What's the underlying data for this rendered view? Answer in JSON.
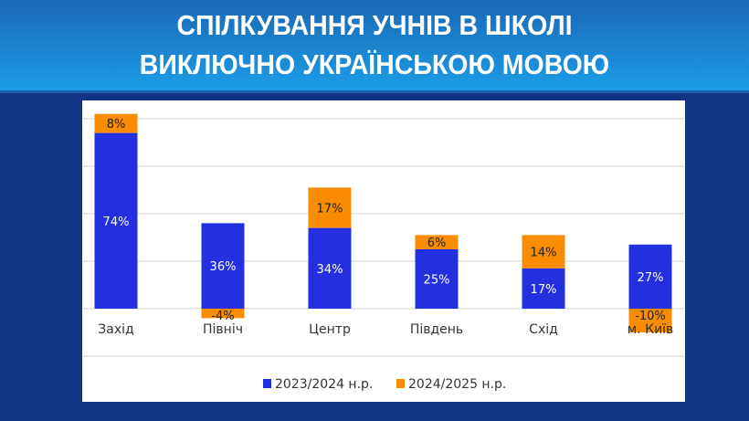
{
  "header": {
    "title_line1": "СПІЛКУВАННЯ УЧНІВ В ШКОЛІ",
    "title_line2": "ВИКЛЮЧНО УКРАЇНСЬКОЮ МОВОЮ"
  },
  "chart_data": {
    "type": "bar",
    "stacked": true,
    "categories": [
      "Захід",
      "Північ",
      "Центр",
      "Південь",
      "Схід",
      "м. Київ"
    ],
    "series": [
      {
        "name": "2023/2024 н.р.",
        "color": "#2230e0",
        "values": [
          74,
          36,
          34,
          25,
          17,
          27
        ],
        "labels": [
          "74%",
          "36%",
          "34%",
          "25%",
          "17%",
          "27%"
        ]
      },
      {
        "name": "2024/2025 н.р.",
        "color": "#f98c00",
        "values": [
          8,
          -4,
          17,
          6,
          14,
          -10
        ],
        "labels": [
          "8%",
          "-4%",
          "17%",
          "6%",
          "14%",
          "-10%"
        ]
      }
    ],
    "ylim": [
      -20,
      80
    ],
    "grid": true,
    "legend": "bottom"
  }
}
